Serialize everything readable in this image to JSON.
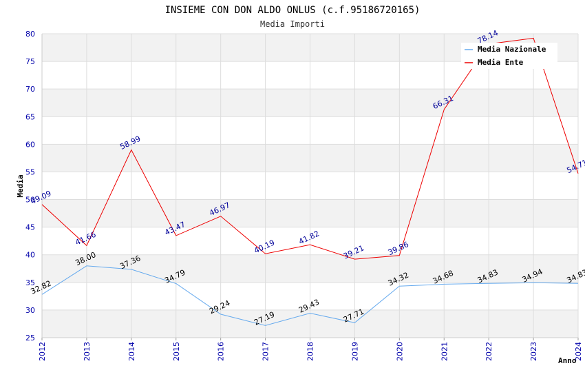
{
  "chart_data": {
    "type": "line",
    "title": "INSIEME CON DON ALDO ONLUS (c.f.95186720165)",
    "subtitle": "Media Importi",
    "xlabel": "Anno",
    "ylabel": "Media",
    "ylim": [
      25,
      80
    ],
    "ytick_step": 5,
    "grid": true,
    "legend_position": "top-right",
    "x": [
      "2012",
      "2013",
      "2014",
      "2015",
      "2016",
      "2017",
      "2018",
      "2019",
      "2020",
      "2021",
      "2022",
      "2023",
      "2024"
    ],
    "series": [
      {
        "name": "Media Nazionale",
        "color": "#66aaee",
        "label_color": "#000000",
        "values": [
          32.82,
          38.0,
          37.36,
          34.79,
          29.24,
          27.19,
          29.43,
          27.71,
          34.32,
          34.68,
          34.83,
          34.94,
          34.83
        ],
        "labels": [
          "32.82",
          "38.00",
          "37.36",
          "34.79",
          "29.24",
          "27.19",
          "29.43",
          "27.71",
          "34.32",
          "34.68",
          "34.83",
          "34.94",
          "34.83"
        ]
      },
      {
        "name": "Media Ente",
        "color": "#ee0000",
        "label_color": "#000099",
        "values": [
          49.09,
          41.66,
          58.99,
          43.47,
          46.97,
          40.19,
          41.82,
          39.21,
          39.86,
          66.31,
          78.14,
          79.2,
          54.71
        ],
        "labels": [
          "49.09",
          "41.66",
          "58.99",
          "43.47",
          "46.97",
          "40.19",
          "41.82",
          "39.21",
          "39.86",
          "66.31",
          "78.14",
          "",
          "54.71"
        ]
      }
    ]
  }
}
